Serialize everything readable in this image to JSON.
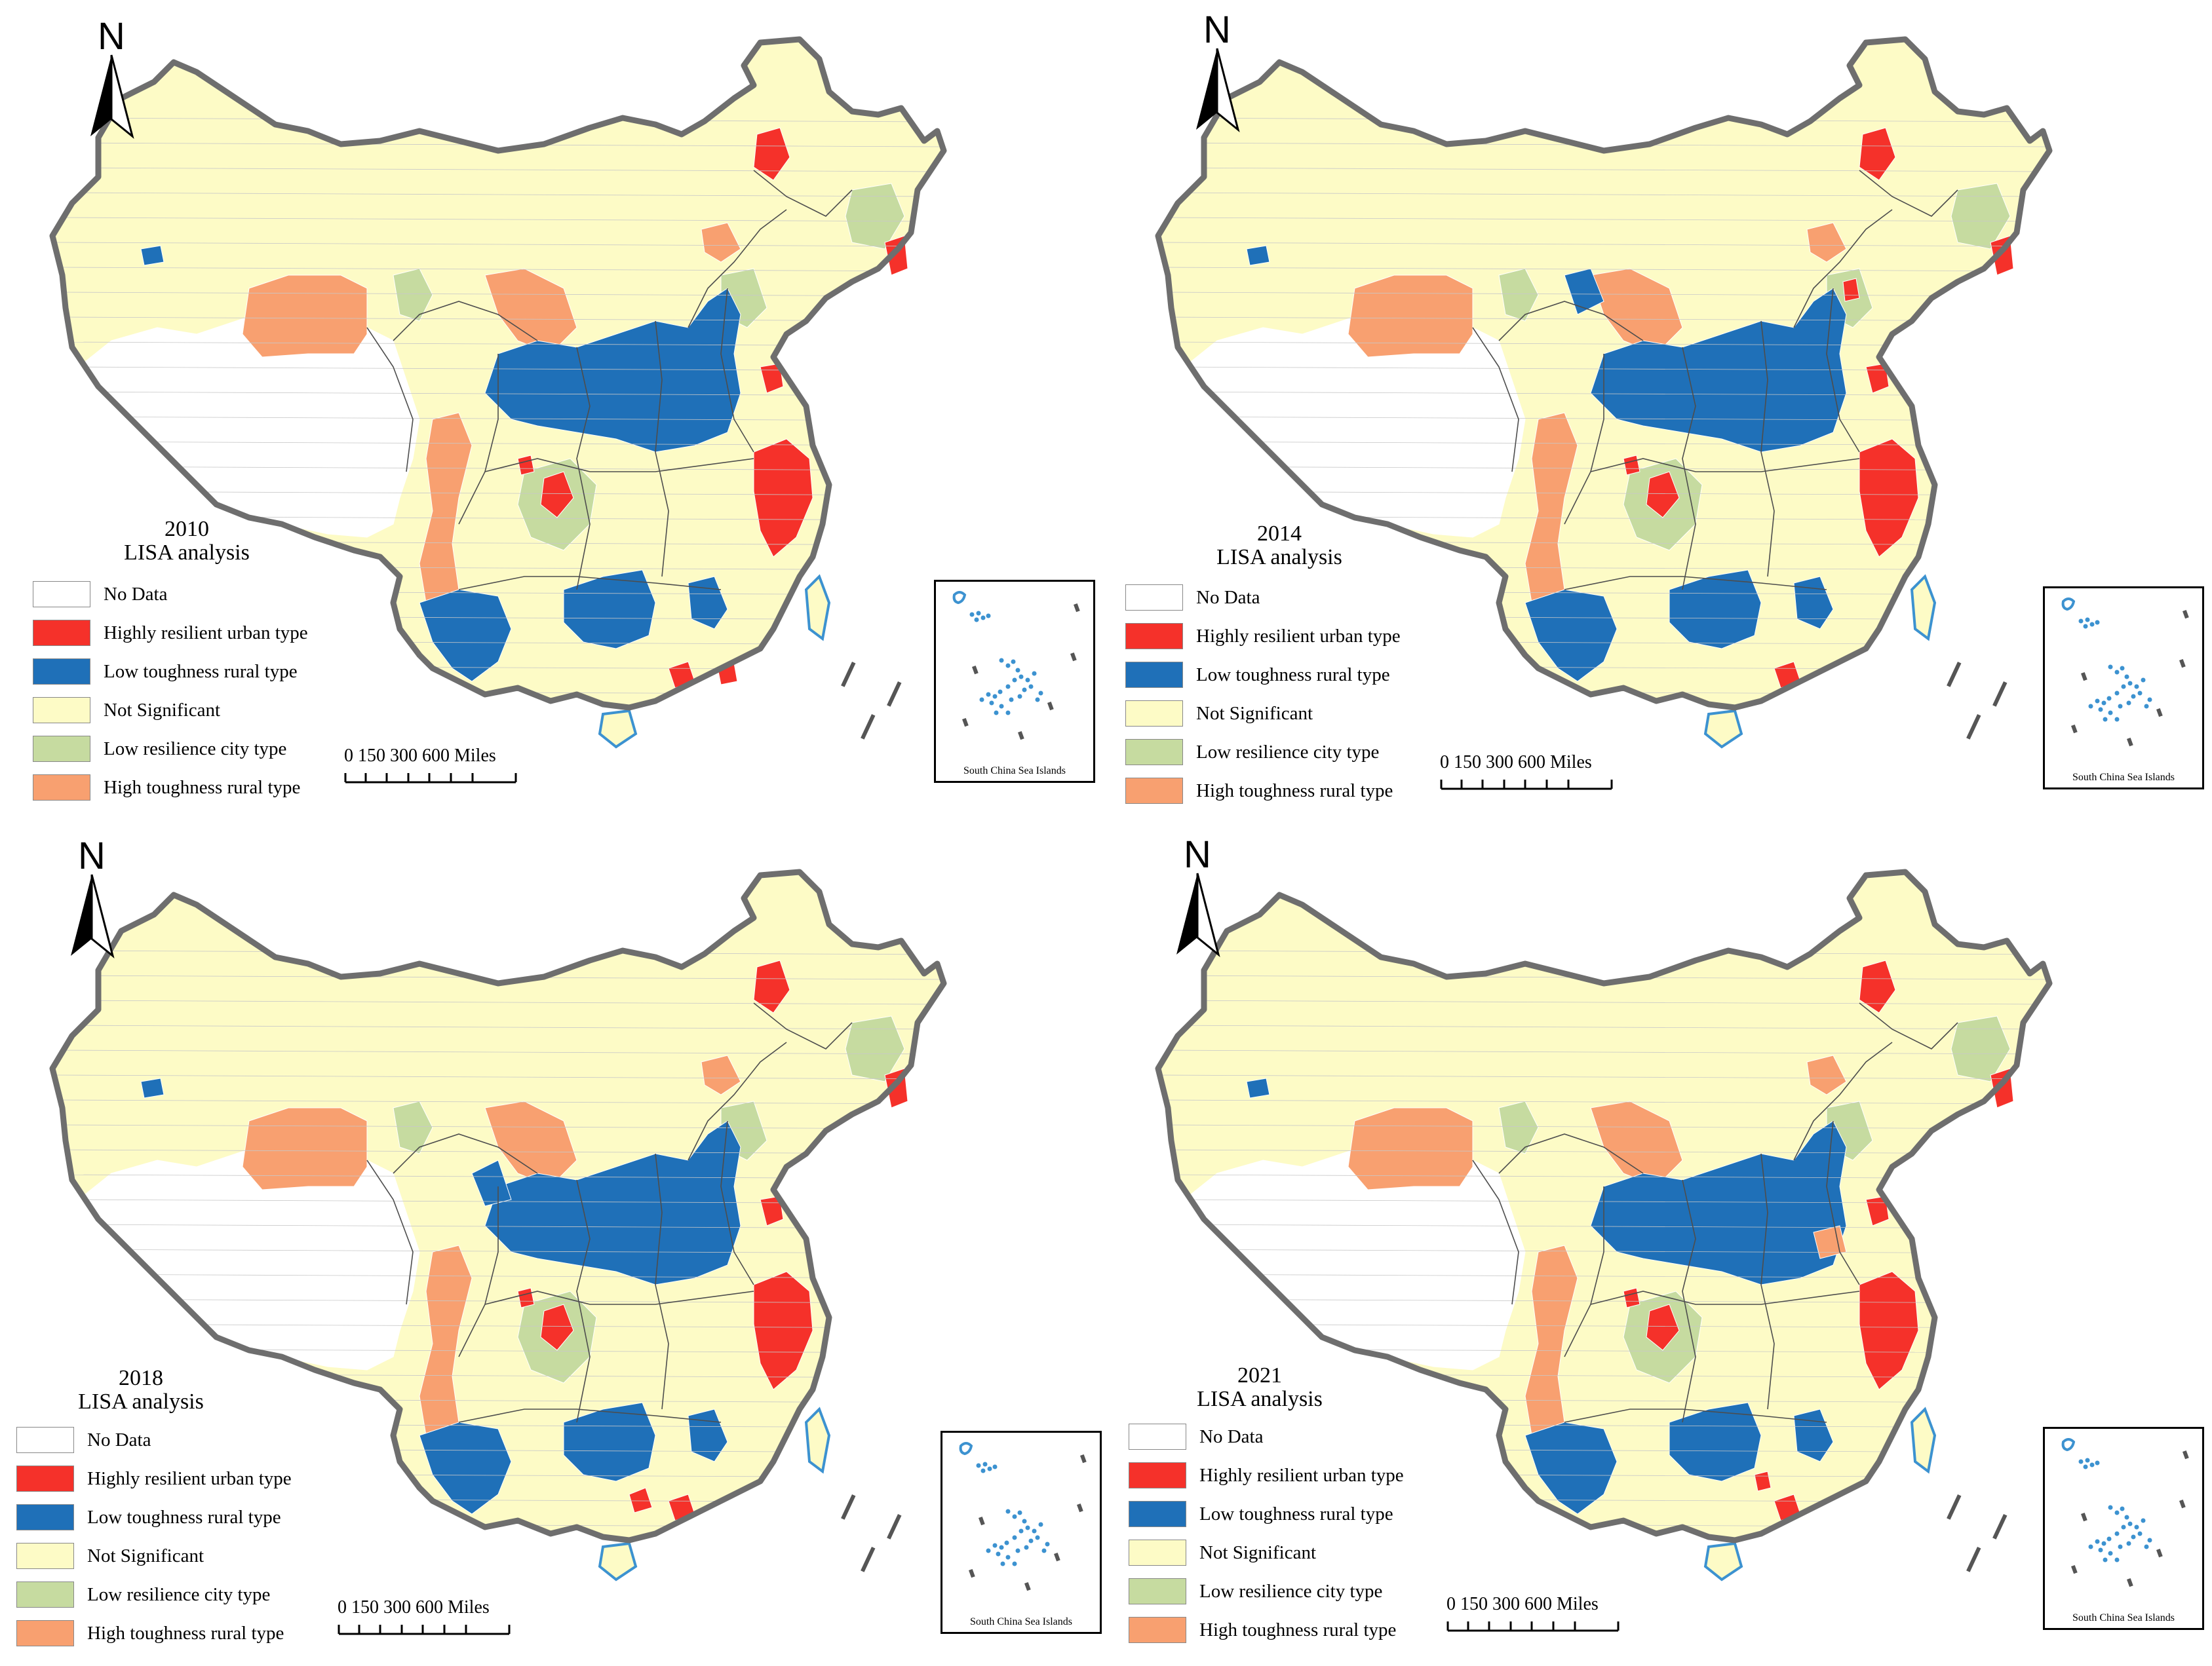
{
  "colors": {
    "no_data": "#ffffff",
    "highly_resilient_urban": "#f5312a",
    "low_toughness_rural": "#1f70b8",
    "not_significant": "#fdfbc6",
    "low_resilience_city": "#c6dba0",
    "high_toughness_rural": "#f8a070",
    "border": "#6e6e6e",
    "sea_islands": "#3c92d0"
  },
  "legend": {
    "items": [
      {
        "key": "no_data",
        "label": "No Data"
      },
      {
        "key": "highly_resilient_urban",
        "label": "Highly resilient urban type"
      },
      {
        "key": "low_toughness_rural",
        "label": "Low toughness rural type"
      },
      {
        "key": "not_significant",
        "label": "Not Significant"
      },
      {
        "key": "low_resilience_city",
        "label": "Low resilience city type"
      },
      {
        "key": "high_toughness_rural",
        "label": "High toughness rural type"
      }
    ]
  },
  "north_label": "N",
  "scale_bar": {
    "ticks": "0   150  300          600 Miles"
  },
  "inset_caption": "South China Sea Islands",
  "panels": [
    {
      "year": "2010",
      "subtitle": "LISA analysis"
    },
    {
      "year": "2014",
      "subtitle": "LISA analysis"
    },
    {
      "year": "2018",
      "subtitle": "LISA analysis"
    },
    {
      "year": "2021",
      "subtitle": "LISA analysis"
    }
  ]
}
